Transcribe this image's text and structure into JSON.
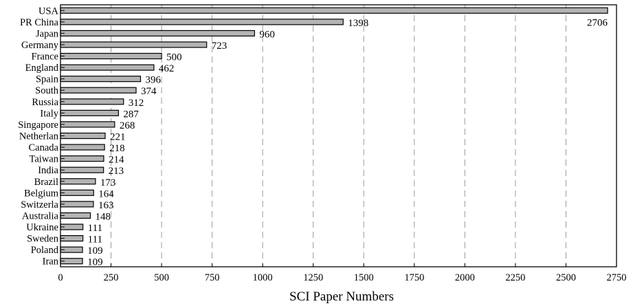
{
  "chart_data": {
    "type": "bar",
    "orientation": "horizontal",
    "categories": [
      "USA",
      "PR China",
      "Japan",
      "Germany",
      "France",
      "England",
      "Spain",
      "South",
      "Russia",
      "Italy",
      "Singapore",
      "Netherlan",
      "Canada",
      "Taiwan",
      "India",
      "Brazil",
      "Belgium",
      "Switzerla",
      "Australia",
      "Ukraine",
      "Sweden",
      "Poland",
      "Iran"
    ],
    "values": [
      2706,
      1398,
      960,
      723,
      500,
      462,
      396,
      374,
      312,
      287,
      268,
      221,
      218,
      214,
      213,
      173,
      164,
      163,
      148,
      111,
      111,
      109,
      109
    ],
    "xlabel": "SCI Paper Numbers",
    "ylabel": "",
    "xlim": [
      0,
      2750
    ],
    "xticks": [
      0,
      250,
      500,
      750,
      1000,
      1250,
      1500,
      1750,
      2000,
      2250,
      2500,
      2750
    ],
    "xtick_labels": [
      "0",
      "250",
      "500",
      "750",
      "1000",
      "1250",
      "1500",
      "1750",
      "2000",
      "2250",
      "2500",
      "2750"
    ],
    "grid": "vertical dashed",
    "legend": "none",
    "colors": {
      "bar_fill": "#b3b3b3",
      "bar_stroke": "#000000",
      "grid": "#9a9a9a"
    }
  }
}
